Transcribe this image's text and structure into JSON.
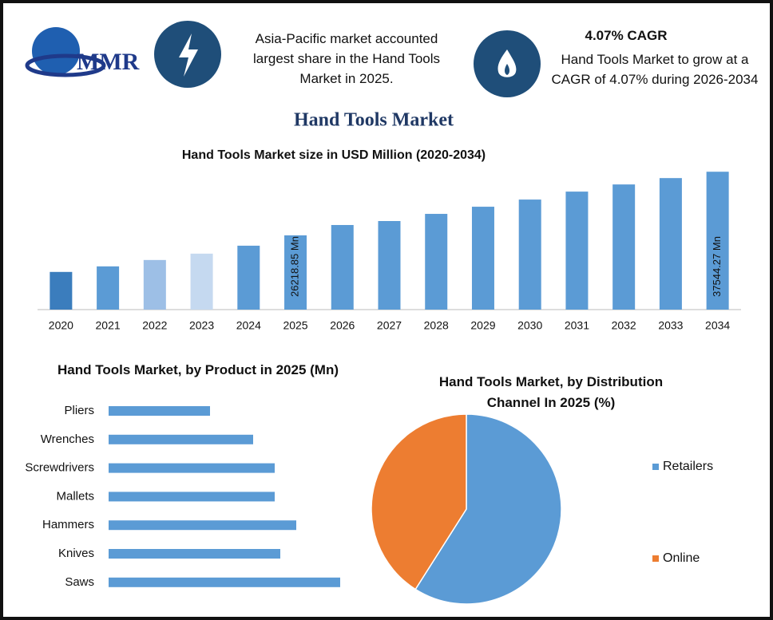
{
  "header": {
    "logo": "MMR",
    "highlight_1": "Asia-Pacific market accounted largest share in the Hand Tools Market in 2025.",
    "highlight_2_title": "4.07% CAGR",
    "highlight_2": "Hand Tools Market to grow at a CAGR of 4.07% during 2026-2034",
    "title": "Hand Tools Market"
  },
  "chart_data": [
    {
      "type": "bar",
      "title": "Hand Tools Market size in USD Million (2020-2034)",
      "categories": [
        "2020",
        "2021",
        "2022",
        "2023",
        "2024",
        "2025",
        "2026",
        "2027",
        "2028",
        "2029",
        "2030",
        "2031",
        "2032",
        "2033",
        "2034"
      ],
      "values": [
        19706,
        20697,
        21830,
        22962,
        24377,
        26218.85,
        28059,
        28767,
        30041,
        31314,
        32589,
        34005,
        35279,
        36412,
        37544.27
      ],
      "value_labels": [
        null,
        null,
        null,
        null,
        null,
        "26218.85 Mn",
        null,
        null,
        null,
        null,
        null,
        null,
        null,
        null,
        "37544.27 Mn"
      ],
      "colors": [
        "#3b7dbd",
        "#5b9bd5",
        "#9dbfe6",
        "#c5d9f0",
        "#5b9bd5",
        "#5b9bd5",
        "#5b9bd5",
        "#5b9bd5",
        "#5b9bd5",
        "#5b9bd5",
        "#5b9bd5",
        "#5b9bd5",
        "#5b9bd5",
        "#5b9bd5",
        "#5b9bd5"
      ],
      "ylim": [
        13000,
        38000
      ]
    },
    {
      "type": "barh",
      "title": "Hand Tools Market, by Product in 2025 (Mn)",
      "categories": [
        "Pliers",
        "Wrenches",
        "Screwdrivers",
        "Mallets",
        "Hammers",
        "Knives",
        "Saws"
      ],
      "values": [
        1270,
        1810,
        2080,
        2080,
        2350,
        2150,
        2900
      ],
      "color": "#5b9bd5",
      "xlim": [
        0,
        3000
      ]
    },
    {
      "type": "pie",
      "title": "Hand Tools Market, by Distribution Channel In 2025 (%)",
      "categories": [
        "Retailers",
        "Online"
      ],
      "values": [
        59,
        41
      ],
      "colors": [
        "#5b9bd5",
        "#ed7d31"
      ],
      "legend": "right"
    }
  ]
}
